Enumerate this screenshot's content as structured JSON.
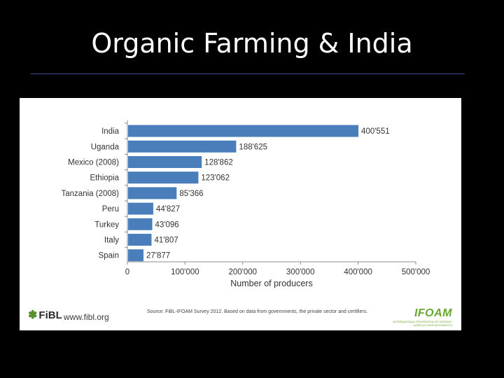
{
  "slide": {
    "title": "Organic Farming & India"
  },
  "chart_data": {
    "type": "bar",
    "orientation": "horizontal",
    "categories": [
      "India",
      "Uganda",
      "Mexico (2008)",
      "Ethiopia",
      "Tanzania (2008)",
      "Peru",
      "Turkey",
      "Italy",
      "Spain"
    ],
    "values": [
      400551,
      188625,
      128862,
      123062,
      85366,
      44827,
      43096,
      41807,
      27877
    ],
    "value_labels": [
      "400'551",
      "188'625",
      "128'862",
      "123'062",
      "85'366",
      "44'827",
      "43'096",
      "41'807",
      "27'877"
    ],
    "xlabel": "Number of producers",
    "ylabel": "",
    "xlim": [
      0,
      500000
    ],
    "xticks": [
      "0",
      "100'000",
      "200'000",
      "300'000",
      "400'000",
      "500'000"
    ],
    "bar_color": "#4a7ebb",
    "grid": false
  },
  "footer": {
    "fibl_logo": "FiBL",
    "fibl_url": "www.fibl.org",
    "source": "Source: FiBL-IFOAM Survey 2012. Based on data from governments, the private sector and certifiers.",
    "ifoam_logo": "IFOAM",
    "ifoam_subtitle": "INTERNATIONAL FEDERATION OF ORGANIC AGRICULTURE MOVEMENTS"
  }
}
